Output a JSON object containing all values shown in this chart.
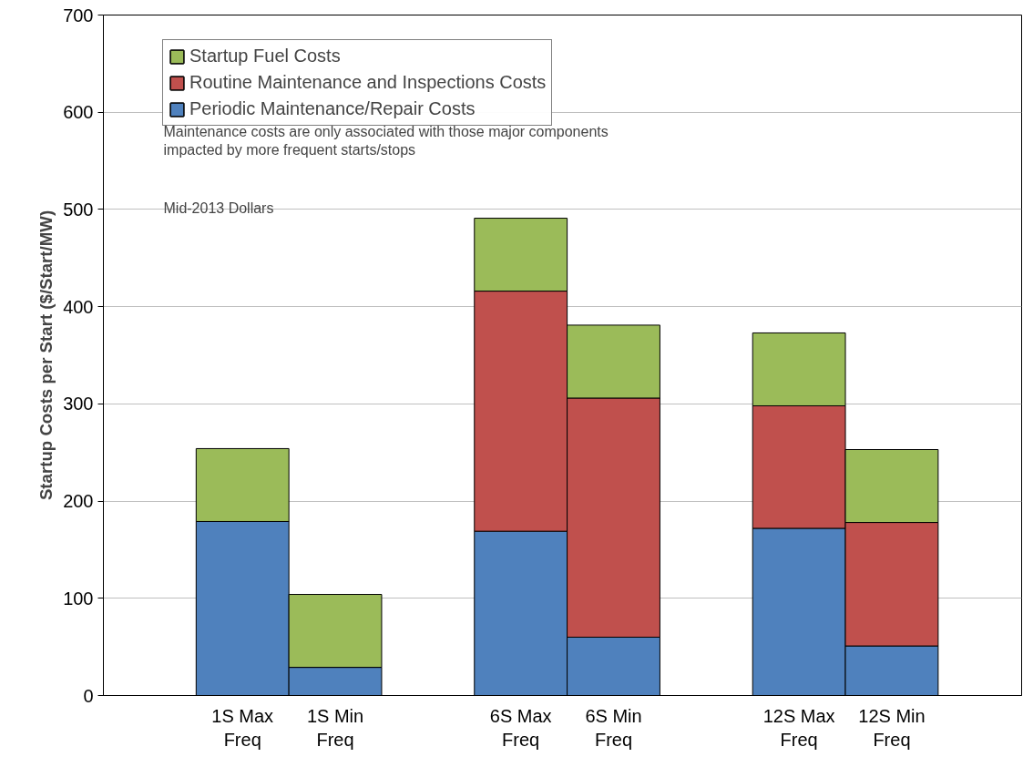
{
  "chart_data": {
    "type": "bar",
    "stacked": true,
    "ylabel": "Startup Costs per Start ($/Start/MW)",
    "categories": [
      null,
      "1S Max Freq",
      "1S Min Freq",
      null,
      "6S Max Freq",
      "6S Min Freq",
      null,
      "12S Max Freq",
      "12S Min Freq"
    ],
    "series": [
      {
        "name": "Periodic Maintenance/Repair Costs",
        "color": "#4f81bd",
        "values": [
          null,
          179,
          29,
          null,
          169,
          60,
          null,
          172,
          51
        ]
      },
      {
        "name": "Routine Maintenance and Inspections Costs",
        "color": "#c0504d",
        "values": [
          null,
          0,
          0,
          null,
          247,
          246,
          null,
          126,
          127
        ]
      },
      {
        "name": "Startup Fuel Costs",
        "color": "#9bbb59",
        "values": [
          null,
          75,
          75,
          null,
          75,
          75,
          null,
          75,
          75
        ]
      }
    ],
    "ylim": [
      0,
      700
    ],
    "yticks": [
      0,
      100,
      200,
      300,
      400,
      500,
      600,
      700
    ],
    "grid": "y",
    "legend": "top left",
    "annotations": [
      "Maintenance costs are only associated with those major components\n impacted by more frequent starts/stops",
      "Mid-2013 Dollars"
    ]
  }
}
